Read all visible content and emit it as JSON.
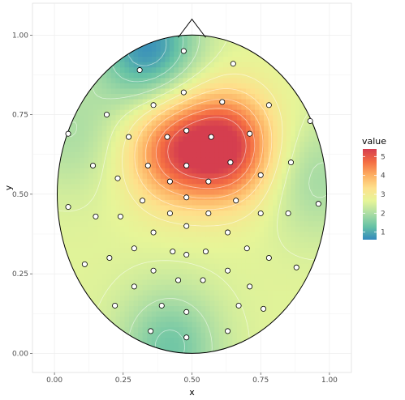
{
  "chart_data": {
    "type": "heatmap",
    "subtype": "topographic head map (interpolated scalp field with electrode points)",
    "xlabel": "x",
    "ylabel": "y",
    "xlim": [
      -0.08,
      1.08
    ],
    "ylim": [
      -0.06,
      1.1
    ],
    "x_ticks": [
      0.0,
      0.25,
      0.5,
      0.75,
      1.0
    ],
    "x_tick_labels": [
      "0.00",
      "0.25",
      "0.50",
      "0.75",
      "1.00"
    ],
    "y_ticks": [
      0.0,
      0.25,
      0.5,
      0.75,
      1.0
    ],
    "y_tick_labels": [
      "0.00",
      "0.25",
      "0.50",
      "0.75",
      "1.00"
    ],
    "grid": true,
    "head": {
      "center": [
        0.5,
        0.5
      ],
      "radius_x": 0.49,
      "radius_y": 0.5,
      "nose_tip": [
        0.5,
        1.05
      ]
    },
    "legend": {
      "title": "value",
      "placement": "right",
      "range": [
        0.6,
        5.4
      ],
      "ticks": [
        1,
        2,
        3,
        4,
        5
      ],
      "tick_labels": [
        "1",
        "2",
        "3",
        "4",
        "5"
      ],
      "colormap": "Spectral (reversed)",
      "color_stops": [
        "#3288bd",
        "#66c2a5",
        "#abdda4",
        "#e6f598",
        "#fee08b",
        "#fdae61",
        "#f46d43",
        "#d53e4f"
      ]
    },
    "field_extrema": [
      {
        "x": 0.63,
        "y": 0.65,
        "value": 5.3,
        "kind": "peak"
      },
      {
        "x": 0.43,
        "y": 0.64,
        "value": 4.6,
        "kind": "peak"
      },
      {
        "x": 0.34,
        "y": 0.96,
        "value": 0.7,
        "kind": "trough"
      },
      {
        "x": 0.06,
        "y": 0.69,
        "value": 2.0,
        "kind": "trough"
      },
      {
        "x": 0.42,
        "y": 0.02,
        "value": 1.4,
        "kind": "trough"
      },
      {
        "x": 0.95,
        "y": 0.55,
        "value": 1.9,
        "kind": "trough"
      }
    ],
    "electrodes": [
      [
        0.47,
        0.95
      ],
      [
        0.65,
        0.91
      ],
      [
        0.31,
        0.89
      ],
      [
        0.47,
        0.82
      ],
      [
        0.36,
        0.78
      ],
      [
        0.61,
        0.79
      ],
      [
        0.78,
        0.78
      ],
      [
        0.19,
        0.75
      ],
      [
        0.93,
        0.73
      ],
      [
        0.48,
        0.7
      ],
      [
        0.71,
        0.69
      ],
      [
        0.05,
        0.69
      ],
      [
        0.27,
        0.68
      ],
      [
        0.41,
        0.68
      ],
      [
        0.57,
        0.68
      ],
      [
        0.64,
        0.6
      ],
      [
        0.34,
        0.59
      ],
      [
        0.48,
        0.59
      ],
      [
        0.14,
        0.59
      ],
      [
        0.86,
        0.6
      ],
      [
        0.75,
        0.56
      ],
      [
        0.23,
        0.55
      ],
      [
        0.42,
        0.54
      ],
      [
        0.56,
        0.54
      ],
      [
        0.48,
        0.49
      ],
      [
        0.66,
        0.48
      ],
      [
        0.32,
        0.48
      ],
      [
        0.05,
        0.46
      ],
      [
        0.96,
        0.47
      ],
      [
        0.42,
        0.44
      ],
      [
        0.56,
        0.44
      ],
      [
        0.15,
        0.43
      ],
      [
        0.24,
        0.43
      ],
      [
        0.75,
        0.44
      ],
      [
        0.85,
        0.44
      ],
      [
        0.48,
        0.4
      ],
      [
        0.36,
        0.38
      ],
      [
        0.63,
        0.38
      ],
      [
        0.29,
        0.33
      ],
      [
        0.7,
        0.33
      ],
      [
        0.43,
        0.32
      ],
      [
        0.55,
        0.32
      ],
      [
        0.2,
        0.3
      ],
      [
        0.48,
        0.31
      ],
      [
        0.78,
        0.3
      ],
      [
        0.11,
        0.28
      ],
      [
        0.88,
        0.27
      ],
      [
        0.36,
        0.26
      ],
      [
        0.63,
        0.26
      ],
      [
        0.45,
        0.23
      ],
      [
        0.54,
        0.23
      ],
      [
        0.29,
        0.21
      ],
      [
        0.71,
        0.21
      ],
      [
        0.22,
        0.15
      ],
      [
        0.39,
        0.15
      ],
      [
        0.48,
        0.13
      ],
      [
        0.67,
        0.15
      ],
      [
        0.76,
        0.14
      ],
      [
        0.35,
        0.07
      ],
      [
        0.63,
        0.07
      ],
      [
        0.48,
        0.05
      ]
    ]
  }
}
